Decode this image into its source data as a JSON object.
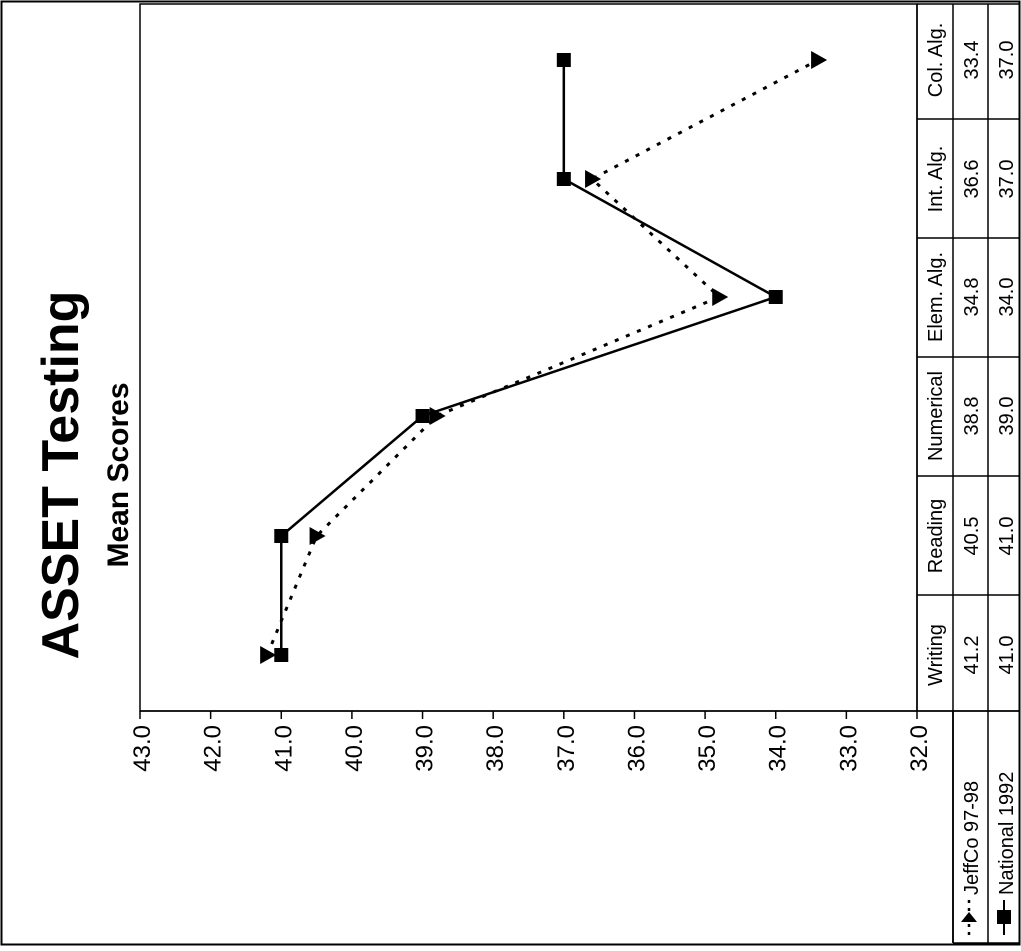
{
  "chart_data": {
    "type": "line",
    "title": "ASSET Testing",
    "subtitle": "Mean Scores",
    "categories": [
      "Writing",
      "Reading",
      "Numerical",
      "Elem. Alg.",
      "Int. Alg.",
      "Col. Alg."
    ],
    "series": [
      {
        "name": "JeffCo 97-98",
        "values": [
          41.2,
          40.5,
          38.8,
          34.8,
          36.6,
          33.4
        ],
        "value_labels": [
          "41.2",
          "40.5",
          "38.8",
          "34.8",
          "36.6",
          "33.4"
        ],
        "line_style": "dotted",
        "marker": "triangle",
        "color": "#000000"
      },
      {
        "name": "National 1992",
        "values": [
          41.0,
          41.0,
          39.0,
          34.0,
          37.0,
          37.0
        ],
        "value_labels": [
          "41.0",
          "41.0",
          "39.0",
          "34.0",
          "37.0",
          "37.0"
        ],
        "line_style": "solid",
        "marker": "square",
        "color": "#000000"
      }
    ],
    "ylim": [
      32.0,
      43.0
    ],
    "yticks": [
      "43.0",
      "42.0",
      "41.0",
      "40.0",
      "39.0",
      "38.0",
      "37.0",
      "36.0",
      "35.0",
      "34.0",
      "33.0",
      "32.0"
    ],
    "grid": false,
    "legend": "data-table",
    "orientation": "rotated 90° clockwise"
  }
}
